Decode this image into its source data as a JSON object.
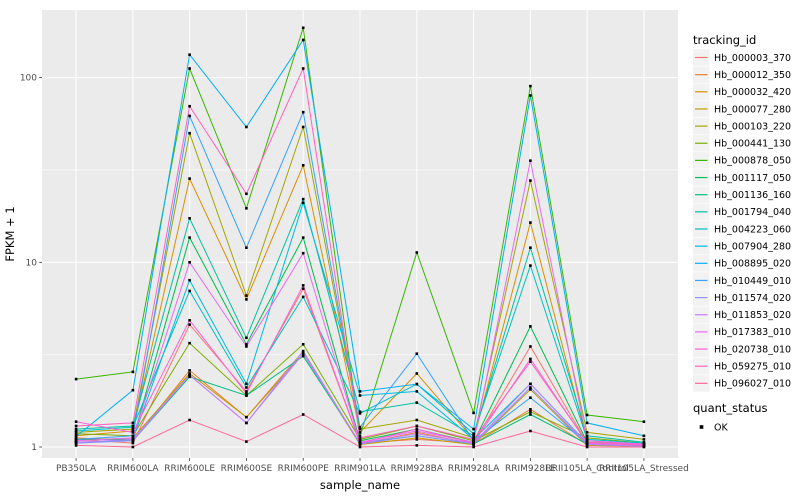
{
  "colors": {
    "page_bg": "#FFFFFF",
    "panel_bg": "#EBEBEB",
    "grid": "#FFFFFF",
    "axis_text": "#4D4D4D",
    "tick_mark": "#333333",
    "point": "#000000",
    "legend_key_bg": "#F2F2F2"
  },
  "legend": {
    "tracking_title": "tracking_id",
    "quant_title": "quant_status",
    "quant_items": [
      {
        "label": "OK",
        "marker": "black-square"
      }
    ]
  },
  "chart_data": {
    "type": "line",
    "title": "",
    "xlabel": "sample_name",
    "ylabel": "FPKM + 1",
    "y_scale": "log10",
    "ylim": [
      0.87,
      230
    ],
    "y_ticks": [
      1,
      10,
      100
    ],
    "y_tick_labels": [
      "1",
      "10",
      "100"
    ],
    "y_minor_ticks": [
      3.1623,
      31.623
    ],
    "grid": "white major+minor horizontal, white vertical at categories, on gray panel",
    "legend_position": "right",
    "point_marker": "small black square (quant_status OK)",
    "categories": [
      "PB350LA",
      "RRIM600LA",
      "RRIM600LE",
      "RRIM600SE",
      "RRIM600PE",
      "RRIM901LA",
      "RRIM928BA",
      "RRIM928LA",
      "RRIM928LE",
      "RRII105LA_Control",
      "RRII105LA_Stressed"
    ],
    "series": [
      {
        "name": "Hb_000003_370",
        "color": "#F8766D",
        "values": [
          1.1,
          1.05,
          4.6,
          2.0,
          7.2,
          1.05,
          1.1,
          1.05,
          3.5,
          1.05,
          1.02
        ]
      },
      {
        "name": "Hb_000012_350",
        "color": "#EA8331",
        "values": [
          1.12,
          1.08,
          2.6,
          1.45,
          3.3,
          1.04,
          1.2,
          1.04,
          1.6,
          1.03,
          1.02
        ]
      },
      {
        "name": "Hb_000032_420",
        "color": "#D89000",
        "values": [
          1.15,
          1.22,
          28.4,
          6.3,
          33.5,
          1.2,
          2.5,
          1.1,
          16.4,
          1.08,
          1.03
        ]
      },
      {
        "name": "Hb_000077_280",
        "color": "#C09B00",
        "values": [
          1.08,
          1.12,
          2.5,
          1.45,
          3.2,
          1.03,
          1.12,
          1.03,
          2.05,
          1.02,
          1.01
        ]
      },
      {
        "name": "Hb_000103_220",
        "color": "#A3A500",
        "values": [
          1.2,
          1.25,
          50.0,
          6.6,
          54.0,
          1.25,
          1.4,
          1.12,
          27.7,
          1.2,
          1.1
        ]
      },
      {
        "name": "Hb_000441_130",
        "color": "#7CAE00",
        "values": [
          1.18,
          1.15,
          3.65,
          1.9,
          3.6,
          1.1,
          1.3,
          1.08,
          1.55,
          1.12,
          1.05
        ]
      },
      {
        "name": "Hb_000878_050",
        "color": "#39B600",
        "values": [
          2.33,
          2.55,
          112.0,
          19.6,
          186.0,
          1.15,
          11.3,
          1.53,
          90.0,
          1.49,
          1.37
        ]
      },
      {
        "name": "Hb_001117_050",
        "color": "#00BB4E",
        "values": [
          1.1,
          1.1,
          13.6,
          3.6,
          13.6,
          1.08,
          1.25,
          1.06,
          4.5,
          1.06,
          1.03
        ]
      },
      {
        "name": "Hb_001136_160",
        "color": "#00BF7D",
        "values": [
          1.06,
          1.08,
          2.4,
          1.9,
          3.1,
          1.05,
          1.15,
          1.04,
          1.5,
          1.04,
          1.02
        ]
      },
      {
        "name": "Hb_001794_040",
        "color": "#00C1A3",
        "values": [
          1.25,
          1.3,
          17.3,
          3.9,
          22.0,
          1.55,
          1.74,
          1.15,
          12.0,
          1.15,
          1.06
        ]
      },
      {
        "name": "Hb_004223_060",
        "color": "#00BFC4",
        "values": [
          1.22,
          1.28,
          7.0,
          2.1,
          6.5,
          1.52,
          2.19,
          1.18,
          9.6,
          1.1,
          1.05
        ]
      },
      {
        "name": "Hb_007904_280",
        "color": "#00BAE0",
        "values": [
          1.05,
          1.1,
          8.0,
          2.2,
          21.0,
          1.9,
          2.0,
          1.1,
          2.2,
          1.05,
          1.02
        ]
      },
      {
        "name": "Hb_008895_020",
        "color": "#00B0F6",
        "values": [
          1.14,
          2.03,
          133.0,
          54.0,
          160.0,
          2.0,
          2.19,
          1.25,
          80.0,
          1.35,
          1.15
        ]
      },
      {
        "name": "Hb_010449_010",
        "color": "#35A2FF",
        "values": [
          1.1,
          1.15,
          62.0,
          12.0,
          65.0,
          1.28,
          3.2,
          1.08,
          1.85,
          1.05,
          1.03
        ]
      },
      {
        "name": "Hb_011574_020",
        "color": "#9590FF",
        "values": [
          1.05,
          1.08,
          2.45,
          1.35,
          3.3,
          1.04,
          1.15,
          1.04,
          2.1,
          1.03,
          1.01
        ]
      },
      {
        "name": "Hb_011853_020",
        "color": "#C77CFF",
        "values": [
          1.06,
          1.1,
          2.45,
          1.35,
          3.2,
          1.05,
          1.18,
          1.05,
          2.2,
          1.04,
          1.02
        ]
      },
      {
        "name": "Hb_017383_010",
        "color": "#E76BF3",
        "values": [
          1.08,
          1.12,
          10.0,
          3.5,
          11.2,
          1.06,
          1.22,
          1.06,
          35.5,
          1.08,
          1.04
        ]
      },
      {
        "name": "Hb_020738_010",
        "color": "#FA62DB",
        "values": [
          1.37,
          1.2,
          4.85,
          1.95,
          7.5,
          1.05,
          1.25,
          1.05,
          3.0,
          1.05,
          1.02
        ]
      },
      {
        "name": "Hb_059275_010",
        "color": "#FF62BC",
        "values": [
          1.3,
          1.35,
          70.0,
          23.5,
          112.0,
          1.12,
          1.3,
          1.1,
          2.9,
          1.06,
          1.03
        ]
      },
      {
        "name": "Hb_096027_010",
        "color": "#FF6A98",
        "values": [
          1.02,
          1.0,
          1.4,
          1.07,
          1.5,
          1.0,
          1.02,
          1.0,
          1.22,
          1.0,
          1.0
        ]
      }
    ]
  }
}
